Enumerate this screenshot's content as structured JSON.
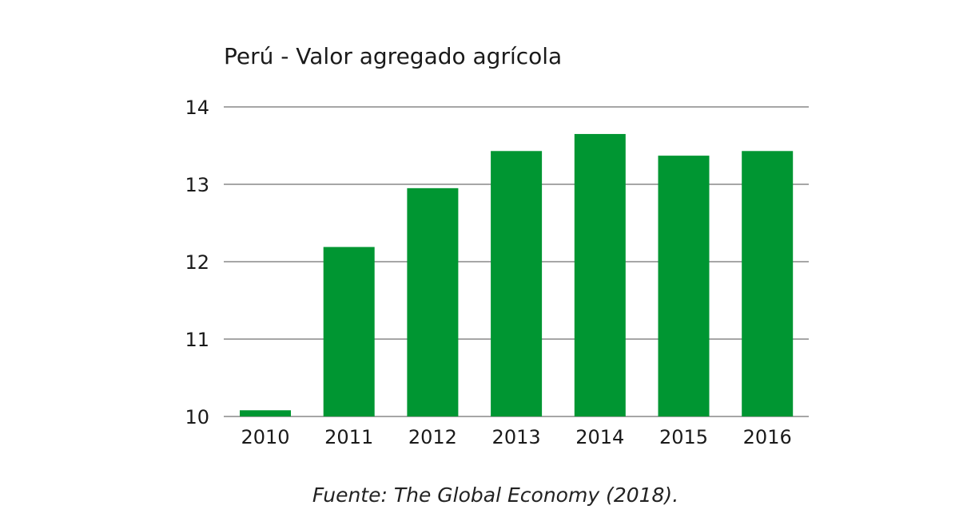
{
  "chart_data": {
    "type": "bar",
    "title": "Perú - Valor agregado agrícola",
    "source": "Fuente: The Global Economy (2018).",
    "categories": [
      "2010",
      "2011",
      "2012",
      "2013",
      "2014",
      "2015",
      "2016"
    ],
    "values": [
      10.08,
      12.19,
      12.95,
      13.43,
      13.65,
      13.37,
      13.43
    ],
    "ylim": [
      10,
      14
    ],
    "yticks": [
      "10",
      "11",
      "12",
      "13",
      "14"
    ],
    "xlabel": "",
    "ylabel": "",
    "grid": true,
    "legend": "none",
    "bar_color": "#009632",
    "grid_color": "#a6a6a6"
  }
}
